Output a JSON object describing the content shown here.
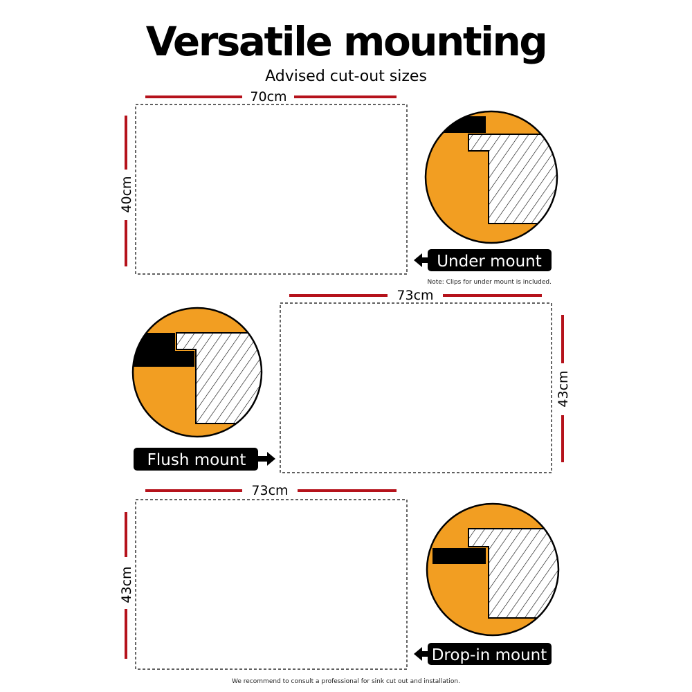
{
  "header": {
    "title": "Versatile mounting",
    "subtitle": "Advised cut-out sizes"
  },
  "colors": {
    "accent_orange": "#F29E22",
    "dimension_red": "#B5121B",
    "label_black": "#000000"
  },
  "sections": [
    {
      "label": "Under mount",
      "width": "70cm",
      "height": "40cm",
      "note": "Note: Clips for under mount is included.",
      "arrow": "arrow-left-icon"
    },
    {
      "label": "Flush mount",
      "width": "73cm",
      "height": "43cm",
      "arrow": "arrow-right-icon"
    },
    {
      "label": "Drop-in mount",
      "width": "73cm",
      "height": "43cm",
      "arrow": "arrow-left-icon"
    }
  ],
  "footer": "We recommend to consult a professional for sink cut out and installation."
}
